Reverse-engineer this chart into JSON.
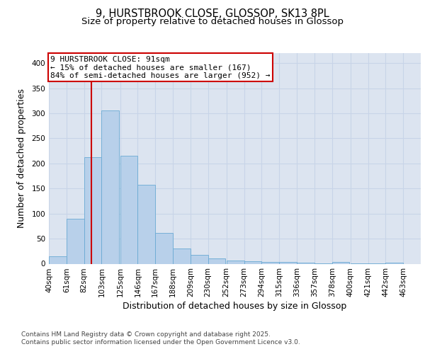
{
  "title1": "9, HURSTBROOK CLOSE, GLOSSOP, SK13 8PL",
  "title2": "Size of property relative to detached houses in Glossop",
  "xlabel": "Distribution of detached houses by size in Glossop",
  "ylabel": "Number of detached properties",
  "bin_labels": [
    "40sqm",
    "61sqm",
    "82sqm",
    "103sqm",
    "125sqm",
    "146sqm",
    "167sqm",
    "188sqm",
    "209sqm",
    "230sqm",
    "252sqm",
    "273sqm",
    "294sqm",
    "315sqm",
    "336sqm",
    "357sqm",
    "378sqm",
    "400sqm",
    "421sqm",
    "442sqm",
    "463sqm"
  ],
  "bin_edges": [
    40,
    61,
    82,
    103,
    125,
    146,
    167,
    188,
    209,
    230,
    252,
    273,
    294,
    315,
    336,
    357,
    378,
    400,
    421,
    442,
    463
  ],
  "bar_heights": [
    15,
    89,
    212,
    305,
    215,
    158,
    62,
    30,
    18,
    10,
    6,
    5,
    3,
    3,
    2,
    1,
    3,
    1,
    1,
    2
  ],
  "bar_color": "#b8d0ea",
  "bar_edge_color": "#6aaad4",
  "property_size": 91,
  "red_line_color": "#cc0000",
  "annotation_line1": "9 HURSTBROOK CLOSE: 91sqm",
  "annotation_line2": "← 15% of detached houses are smaller (167)",
  "annotation_line3": "84% of semi-detached houses are larger (952) →",
  "annotation_box_color": "#cc0000",
  "annotation_text_color": "#000000",
  "ylim": [
    0,
    420
  ],
  "yticks": [
    0,
    50,
    100,
    150,
    200,
    250,
    300,
    350,
    400
  ],
  "grid_color": "#c8d4e8",
  "background_color": "#dce4f0",
  "footer_text": "Contains HM Land Registry data © Crown copyright and database right 2025.\nContains public sector information licensed under the Open Government Licence v3.0.",
  "title_fontsize": 10.5,
  "subtitle_fontsize": 9.5,
  "axis_label_fontsize": 9,
  "tick_fontsize": 7.5,
  "footer_fontsize": 6.5
}
